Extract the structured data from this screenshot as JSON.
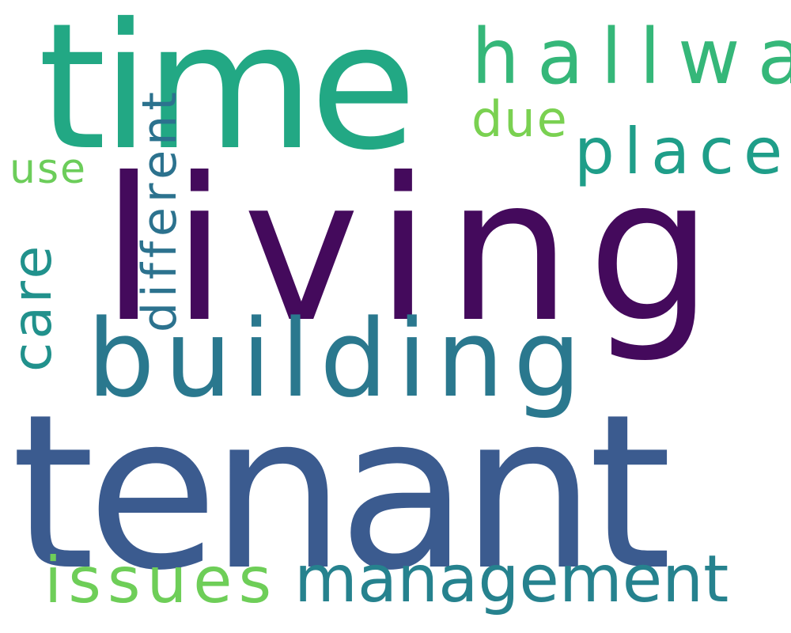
{
  "word_cloud": {
    "words": {
      "tenant": {
        "text": "tenant",
        "color": "#3b5b8f"
      },
      "living": {
        "text": "living",
        "color": "#440a5c"
      },
      "time": {
        "text": "time",
        "color": "#22a884"
      },
      "building": {
        "text": "building",
        "color": "#2a788e"
      },
      "hallway": {
        "text": "hallway",
        "color": "#35b779"
      },
      "place": {
        "text": "place",
        "color": "#1f9e89"
      },
      "due": {
        "text": "due",
        "color": "#7ad151"
      },
      "use": {
        "text": "use",
        "color": "#6ccd5a"
      },
      "management": {
        "text": "management",
        "color": "#26828e"
      },
      "issues": {
        "text": "issues",
        "color": "#6ece58"
      },
      "care": {
        "text": "care",
        "color": "#21918c"
      },
      "different": {
        "text": "different",
        "color": "#2c728e"
      }
    }
  }
}
